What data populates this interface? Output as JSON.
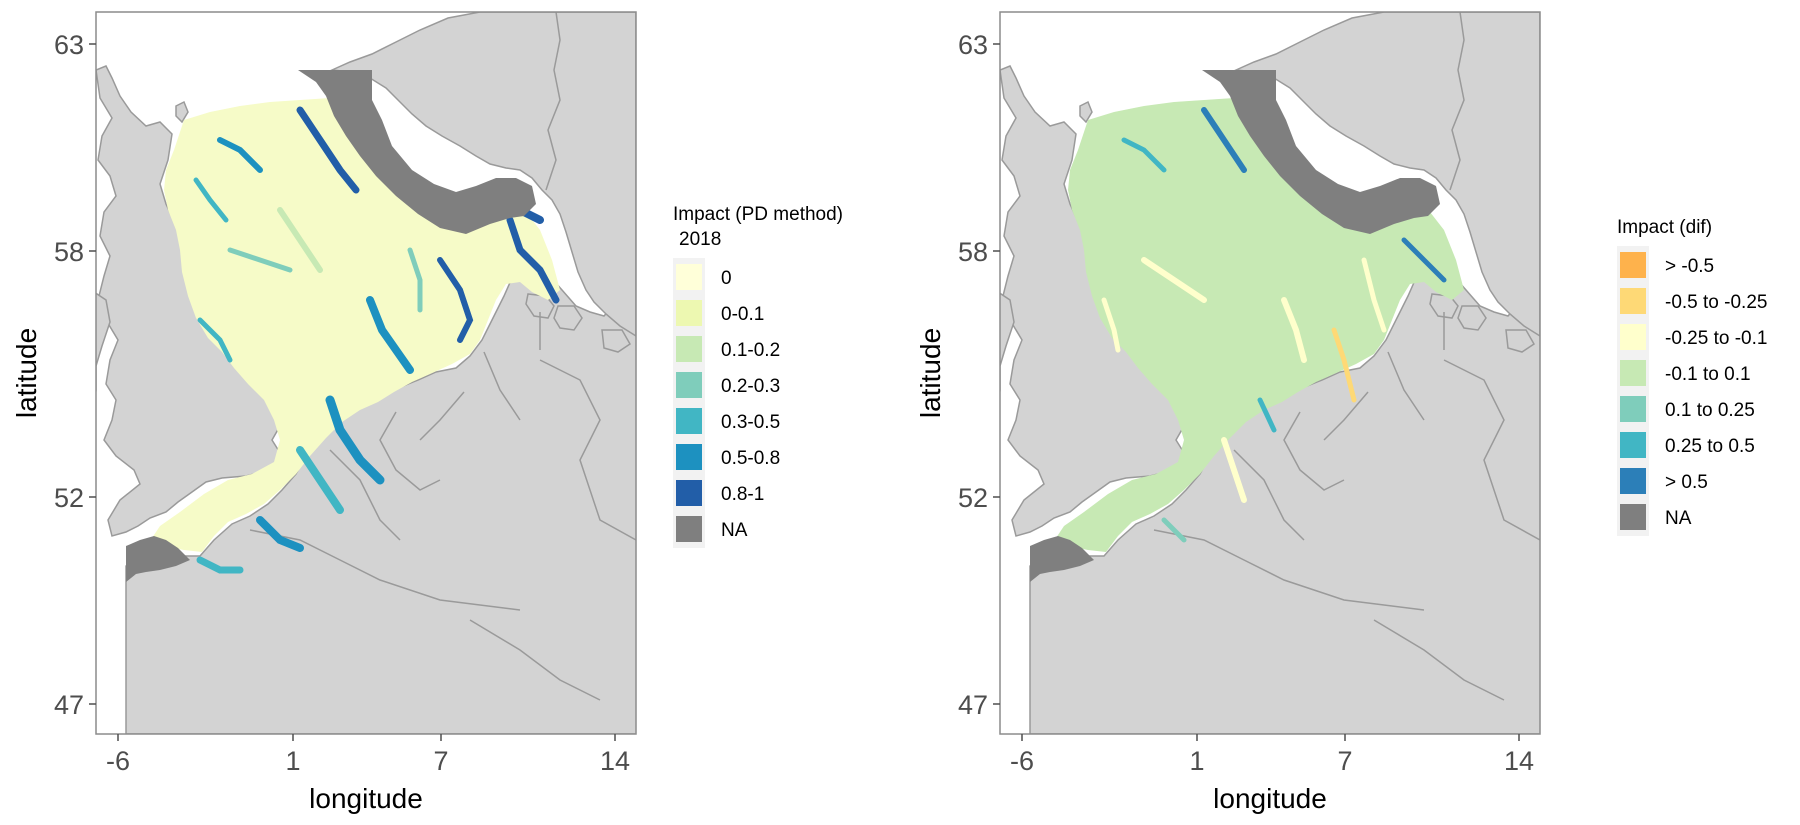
{
  "colors": {
    "land": "#d3d3d3",
    "land_stroke": "#9a9a9a",
    "na": "#7f7f7f",
    "panel_border": "#8c8c8c",
    "axis_text": "#4d4d4d",
    "legend_bg": "#f2f2f2"
  },
  "axes": {
    "xlabel": "longitude",
    "ylabel": "latitude",
    "xticks": [
      "-6",
      "1",
      "7",
      "14"
    ],
    "yticks": [
      "63",
      "58",
      "52",
      "47"
    ]
  },
  "legends": {
    "left": {
      "title_line1": "Impact (PD method)",
      "title_line2": "2018",
      "items": [
        {
          "label": "0",
          "color": "#ffffd9"
        },
        {
          "label": "0-0.1",
          "color": "#edf8b1"
        },
        {
          "label": "0.1-0.2",
          "color": "#c7e9b4"
        },
        {
          "label": "0.2-0.3",
          "color": "#7fcdbb"
        },
        {
          "label": "0.3-0.5",
          "color": "#41b6c4"
        },
        {
          "label": "0.5-0.8",
          "color": "#1d91c0"
        },
        {
          "label": "0.8-1",
          "color": "#225ea8"
        },
        {
          "label": "NA",
          "color": "#7f7f7f"
        }
      ]
    },
    "right": {
      "title_line1": "Impact (dif)",
      "items": [
        {
          "label": "> -0.5",
          "color": "#feb24c"
        },
        {
          "label": "-0.5 to -0.25",
          "color": "#fed976"
        },
        {
          "label": "-0.25 to -0.1",
          "color": "#ffffcc"
        },
        {
          "label": "-0.1 to 0.1",
          "color": "#c7e9b4"
        },
        {
          "label": "0.1 to 0.25",
          "color": "#7fcdbb"
        },
        {
          "label": "0.25 to 0.5",
          "color": "#41b6c4"
        },
        {
          "label": "> 0.5",
          "color": "#2c7fb8"
        },
        {
          "label": "NA",
          "color": "#7f7f7f"
        }
      ]
    }
  }
}
